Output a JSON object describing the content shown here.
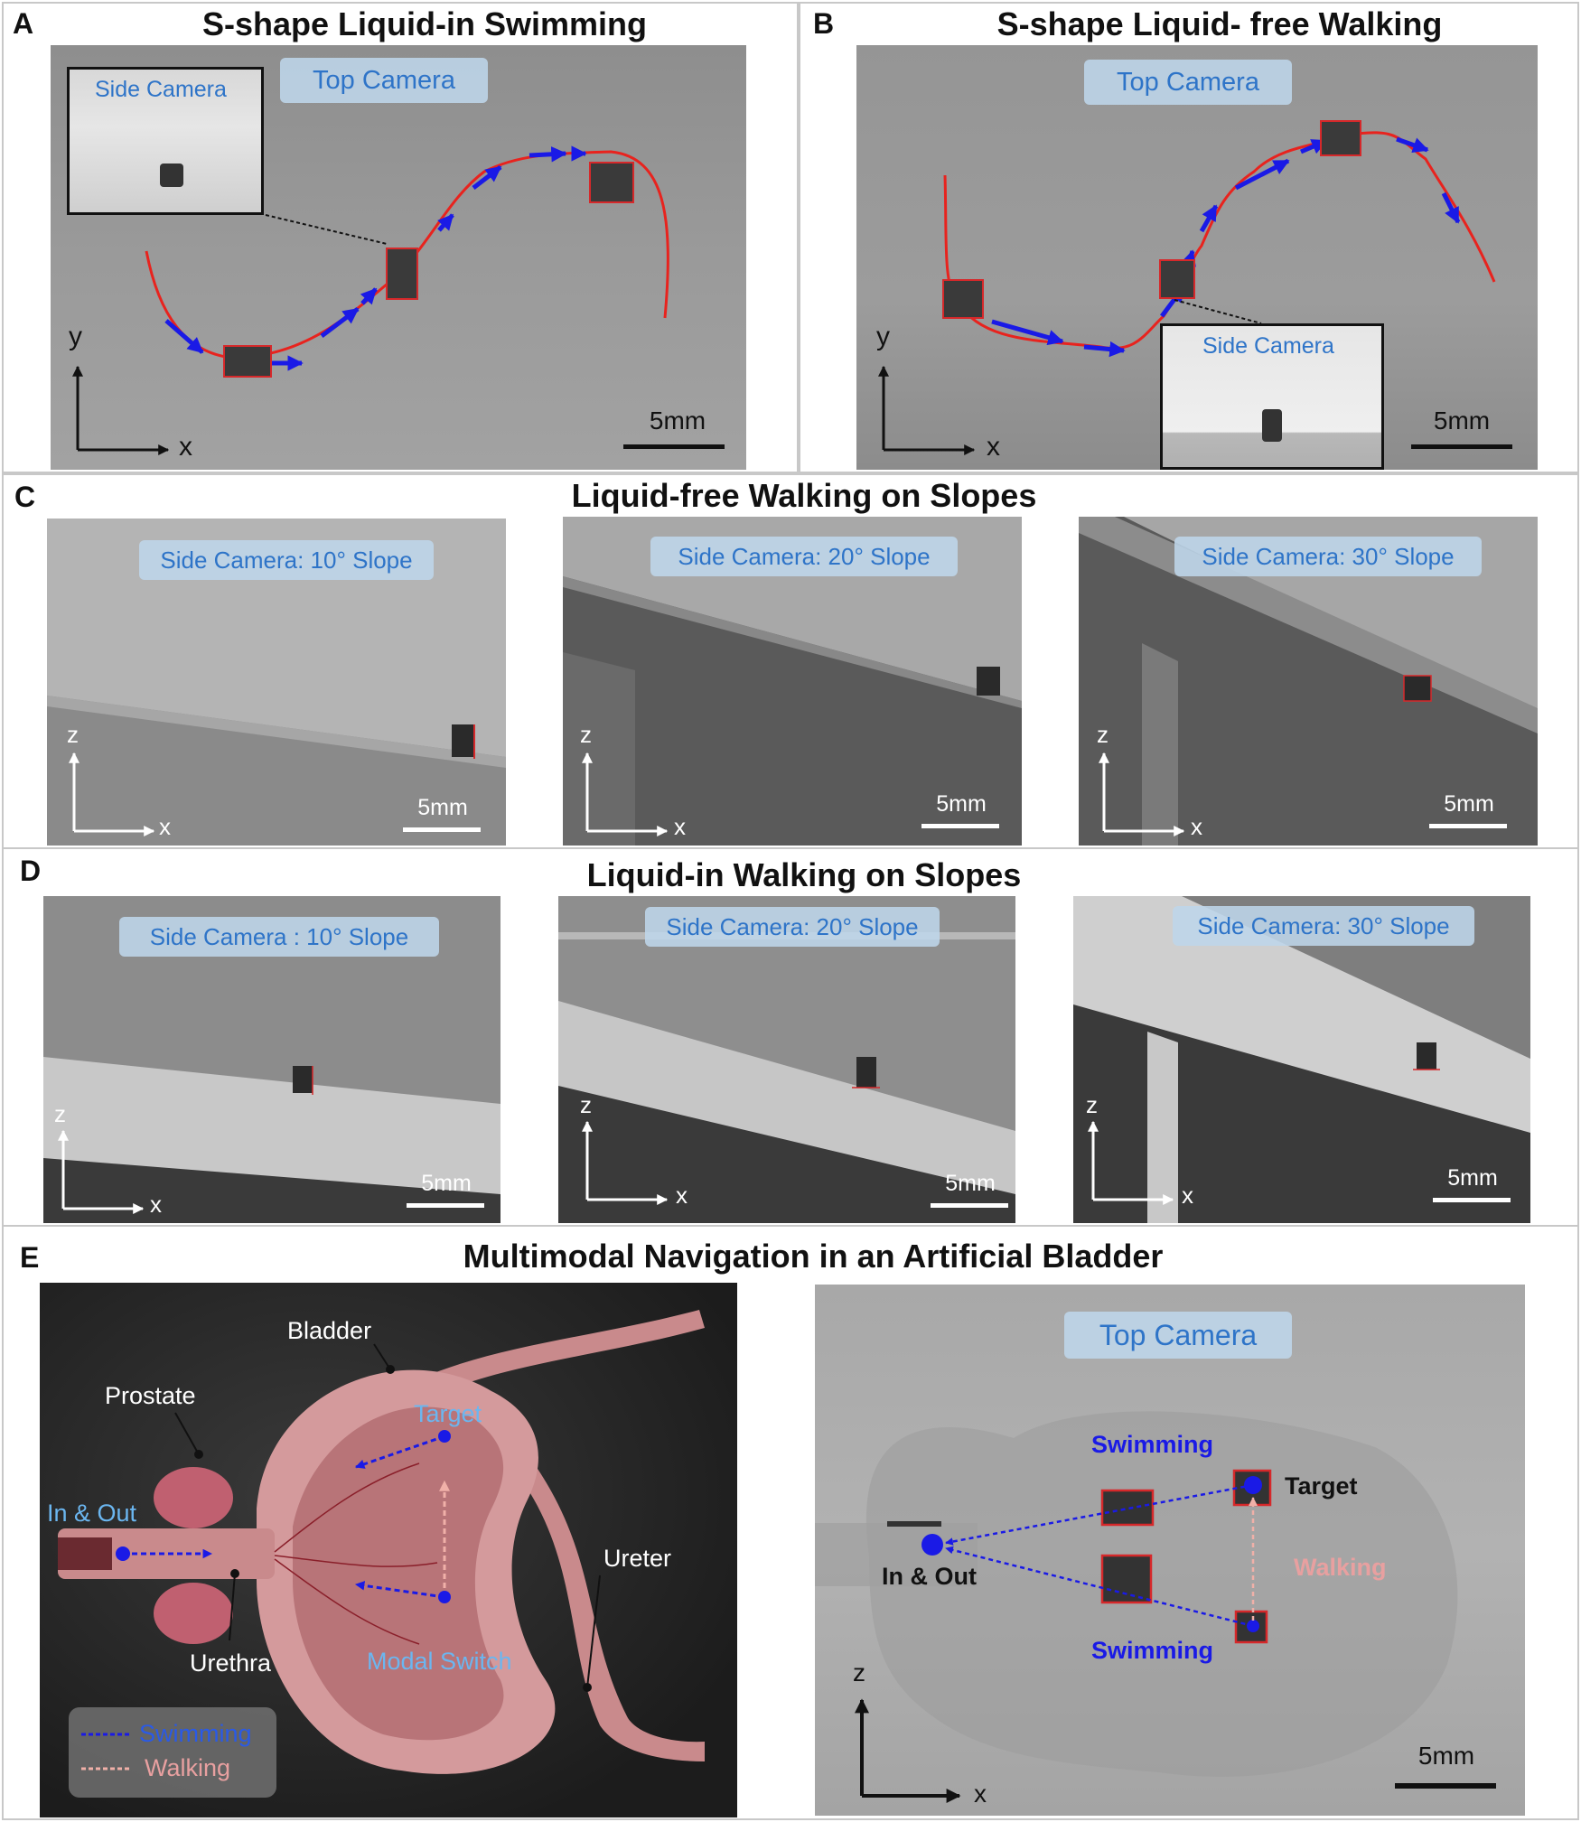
{
  "panelA": {
    "letter": "A",
    "title": "S-shape Liquid-in Swimming",
    "top_camera": "Top Camera",
    "side_camera": "Side Camera",
    "scale": "5mm",
    "axis_y": "y",
    "axis_x": "x"
  },
  "panelB": {
    "letter": "B",
    "title": "S-shape Liquid- free Walking",
    "top_camera": "Top Camera",
    "side_camera": "Side Camera",
    "scale": "5mm",
    "axis_y": "y",
    "axis_x": "x"
  },
  "panelC": {
    "letter": "C",
    "title": "Liquid-free Walking on Slopes",
    "views": [
      {
        "label": "Side Camera: 10° Slope",
        "scale": "5mm",
        "axis_z": "z",
        "axis_x": "x"
      },
      {
        "label": "Side Camera: 20° Slope",
        "scale": "5mm",
        "axis_z": "z",
        "axis_x": "x"
      },
      {
        "label": "Side Camera: 30° Slope",
        "scale": "5mm",
        "axis_z": "z",
        "axis_x": "x"
      }
    ]
  },
  "panelD": {
    "letter": "D",
    "title": "Liquid-in Walking on Slopes",
    "views": [
      {
        "label": "Side Camera : 10° Slope",
        "scale": "5mm",
        "axis_z": "z",
        "axis_x": "x"
      },
      {
        "label": "Side Camera: 20° Slope",
        "scale": "5mm",
        "axis_z": "z",
        "axis_x": "x"
      },
      {
        "label": "Side Camera: 30° Slope",
        "scale": "5mm",
        "axis_z": "z",
        "axis_x": "x"
      }
    ]
  },
  "panelE": {
    "letter": "E",
    "title": "Multimodal Navigation in an Artificial Bladder",
    "diagram": {
      "bladder": "Bladder",
      "prostate": "Prostate",
      "target": "Target",
      "in_out": "In & Out",
      "urethra": "Urethra",
      "modal_switch": "Modal Switch",
      "ureter": "Ureter",
      "legend_swimming": "Swimming",
      "legend_walking": "Walking"
    },
    "photo": {
      "top_camera": "Top Camera",
      "swimming_top": "Swimming",
      "target": "Target",
      "in_out": "In & Out",
      "walking": "Walking",
      "swimming_bottom": "Swimming",
      "axis_z": "z",
      "axis_x": "x",
      "scale": "5mm"
    }
  },
  "colors": {
    "trajectory_red": "#e8231e",
    "arrow_blue": "#1a1ae6",
    "label_blue": "#2e74c8",
    "bladder_pink": "#d49a9c",
    "walking_pink": "#e8a0a0"
  }
}
